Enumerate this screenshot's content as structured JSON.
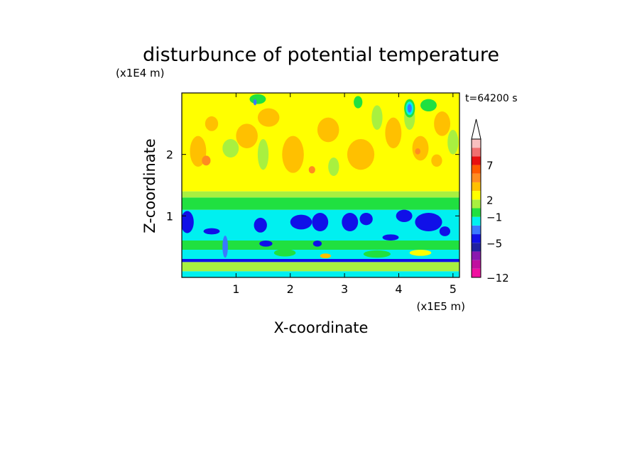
{
  "chart_data": {
    "type": "heatmap",
    "title": "disturbunce of potential temperature",
    "xlabel": "X-coordinate",
    "ylabel": "Z-coordinate",
    "x_unit": "(x1E5 m)",
    "y_unit": "(x1E4 m)",
    "time_label": "t=64200 s",
    "xlim": [
      0,
      5.12
    ],
    "ylim": [
      0,
      3.0
    ],
    "x_ticks": [
      1,
      2,
      3,
      4,
      5
    ],
    "y_ticks": [
      1,
      2
    ],
    "grid": false,
    "legend": "right colorbar",
    "colorbar": {
      "levels": [
        {
          "color": "#f010a0"
        },
        {
          "color": "#c0109f"
        },
        {
          "color": "#8a18b0"
        },
        {
          "color": "#2020a0"
        },
        {
          "color": "#1010e8"
        },
        {
          "color": "#3a78ff"
        },
        {
          "color": "#00f0f0"
        },
        {
          "color": "#20e040"
        },
        {
          "color": "#a8f040"
        },
        {
          "color": "#ffff00"
        },
        {
          "color": "#ffc000"
        },
        {
          "color": "#ff8c20"
        },
        {
          "color": "#ff5a00"
        },
        {
          "color": "#e81010"
        },
        {
          "color": "#f07070"
        },
        {
          "color": "#f8c0c0"
        }
      ],
      "tick_labels": [
        {
          "label": "−12",
          "level_index": 0
        },
        {
          "label": "−5",
          "level_index": 4
        },
        {
          "label": "−1",
          "level_index": 7
        },
        {
          "label": "2",
          "level_index": 9
        },
        {
          "label": "7",
          "level_index": 13
        }
      ],
      "extend": "max"
    },
    "bands": [
      {
        "z_min": 0.0,
        "z_max": 0.1,
        "color": "#00f0f0"
      },
      {
        "z_min": 0.1,
        "z_max": 0.25,
        "color": "#a8f040"
      },
      {
        "z_min": 0.25,
        "z_max": 0.3,
        "color": "#1010e8"
      },
      {
        "z_min": 0.3,
        "z_max": 0.45,
        "color": "#00f0f0"
      },
      {
        "z_min": 0.45,
        "z_max": 0.6,
        "color": "#20e040"
      },
      {
        "z_min": 0.6,
        "z_max": 1.1,
        "color": "#00f0f0"
      },
      {
        "z_min": 1.1,
        "z_max": 1.3,
        "color": "#20e040"
      },
      {
        "z_min": 1.3,
        "z_max": 1.4,
        "color": "#a8f040"
      },
      {
        "z_min": 1.4,
        "z_max": 3.0,
        "color": "#ffff00"
      }
    ],
    "blobs": [
      {
        "x": 0.1,
        "z": 0.9,
        "rx": 0.12,
        "rz": 0.18,
        "color": "#1010e8"
      },
      {
        "x": 0.55,
        "z": 0.75,
        "rx": 0.15,
        "rz": 0.05,
        "color": "#1010e8"
      },
      {
        "x": 1.45,
        "z": 0.85,
        "rx": 0.12,
        "rz": 0.12,
        "color": "#1010e8"
      },
      {
        "x": 1.55,
        "z": 0.55,
        "rx": 0.12,
        "rz": 0.05,
        "color": "#1010e8"
      },
      {
        "x": 2.2,
        "z": 0.9,
        "rx": 0.2,
        "rz": 0.12,
        "color": "#1010e8"
      },
      {
        "x": 2.55,
        "z": 0.9,
        "rx": 0.15,
        "rz": 0.15,
        "color": "#1010e8"
      },
      {
        "x": 2.5,
        "z": 0.55,
        "rx": 0.08,
        "rz": 0.05,
        "color": "#1010e8"
      },
      {
        "x": 3.1,
        "z": 0.9,
        "rx": 0.15,
        "rz": 0.15,
        "color": "#1010e8"
      },
      {
        "x": 3.4,
        "z": 0.95,
        "rx": 0.12,
        "rz": 0.1,
        "color": "#1010e8"
      },
      {
        "x": 3.85,
        "z": 0.65,
        "rx": 0.15,
        "rz": 0.05,
        "color": "#1010e8"
      },
      {
        "x": 4.1,
        "z": 1.0,
        "rx": 0.15,
        "rz": 0.1,
        "color": "#1010e8"
      },
      {
        "x": 4.55,
        "z": 0.9,
        "rx": 0.25,
        "rz": 0.15,
        "color": "#1010e8"
      },
      {
        "x": 4.85,
        "z": 0.75,
        "rx": 0.1,
        "rz": 0.08,
        "color": "#1010e8"
      },
      {
        "x": 0.8,
        "z": 0.5,
        "rx": 0.05,
        "rz": 0.18,
        "color": "#3a78ff"
      },
      {
        "x": 1.9,
        "z": 0.4,
        "rx": 0.2,
        "rz": 0.06,
        "color": "#20e040"
      },
      {
        "x": 3.6,
        "z": 0.38,
        "rx": 0.25,
        "rz": 0.06,
        "color": "#20e040"
      },
      {
        "x": 4.4,
        "z": 0.4,
        "rx": 0.2,
        "rz": 0.05,
        "color": "#ffff00"
      },
      {
        "x": 2.65,
        "z": 0.35,
        "rx": 0.1,
        "rz": 0.04,
        "color": "#ffc000"
      },
      {
        "x": 0.3,
        "z": 2.05,
        "rx": 0.15,
        "rz": 0.25,
        "color": "#ffc000"
      },
      {
        "x": 0.45,
        "z": 1.9,
        "rx": 0.08,
        "rz": 0.08,
        "color": "#ff8c20"
      },
      {
        "x": 0.55,
        "z": 2.5,
        "rx": 0.12,
        "rz": 0.12,
        "color": "#ffc000"
      },
      {
        "x": 1.2,
        "z": 2.3,
        "rx": 0.2,
        "rz": 0.2,
        "color": "#ffc000"
      },
      {
        "x": 1.6,
        "z": 2.6,
        "rx": 0.2,
        "rz": 0.15,
        "color": "#ffc000"
      },
      {
        "x": 2.05,
        "z": 2.0,
        "rx": 0.2,
        "rz": 0.3,
        "color": "#ffc000"
      },
      {
        "x": 2.4,
        "z": 1.75,
        "rx": 0.06,
        "rz": 0.06,
        "color": "#ff8c20"
      },
      {
        "x": 2.7,
        "z": 2.4,
        "rx": 0.2,
        "rz": 0.2,
        "color": "#ffc000"
      },
      {
        "x": 3.3,
        "z": 2.0,
        "rx": 0.25,
        "rz": 0.25,
        "color": "#ffc000"
      },
      {
        "x": 3.9,
        "z": 2.35,
        "rx": 0.15,
        "rz": 0.25,
        "color": "#ffc000"
      },
      {
        "x": 4.4,
        "z": 2.1,
        "rx": 0.15,
        "rz": 0.2,
        "color": "#ffc000"
      },
      {
        "x": 4.35,
        "z": 2.05,
        "rx": 0.05,
        "rz": 0.05,
        "color": "#ff8c20"
      },
      {
        "x": 4.8,
        "z": 2.5,
        "rx": 0.15,
        "rz": 0.2,
        "color": "#ffc000"
      },
      {
        "x": 4.7,
        "z": 1.9,
        "rx": 0.1,
        "rz": 0.1,
        "color": "#ffc000"
      },
      {
        "x": 0.9,
        "z": 2.1,
        "rx": 0.15,
        "rz": 0.15,
        "color": "#a8f040"
      },
      {
        "x": 1.5,
        "z": 2.0,
        "rx": 0.1,
        "rz": 0.25,
        "color": "#a8f040"
      },
      {
        "x": 2.8,
        "z": 1.8,
        "rx": 0.1,
        "rz": 0.15,
        "color": "#a8f040"
      },
      {
        "x": 3.6,
        "z": 2.6,
        "rx": 0.1,
        "rz": 0.2,
        "color": "#a8f040"
      },
      {
        "x": 4.2,
        "z": 2.6,
        "rx": 0.1,
        "rz": 0.2,
        "color": "#a8f040"
      },
      {
        "x": 5.0,
        "z": 2.2,
        "rx": 0.1,
        "rz": 0.2,
        "color": "#a8f040"
      },
      {
        "x": 1.4,
        "z": 2.9,
        "rx": 0.15,
        "rz": 0.08,
        "color": "#20e040"
      },
      {
        "x": 3.25,
        "z": 2.85,
        "rx": 0.08,
        "rz": 0.1,
        "color": "#20e040"
      },
      {
        "x": 4.55,
        "z": 2.8,
        "rx": 0.15,
        "rz": 0.1,
        "color": "#20e040"
      },
      {
        "x": 4.2,
        "z": 2.75,
        "rx": 0.1,
        "rz": 0.15,
        "color": "#20e040"
      },
      {
        "x": 4.2,
        "z": 2.75,
        "rx": 0.07,
        "rz": 0.11,
        "color": "#00f0f0"
      },
      {
        "x": 4.2,
        "z": 2.75,
        "rx": 0.04,
        "rz": 0.07,
        "color": "#3a78ff"
      },
      {
        "x": 1.35,
        "z": 2.85,
        "rx": 0.03,
        "rz": 0.05,
        "color": "#3a78ff"
      }
    ]
  }
}
